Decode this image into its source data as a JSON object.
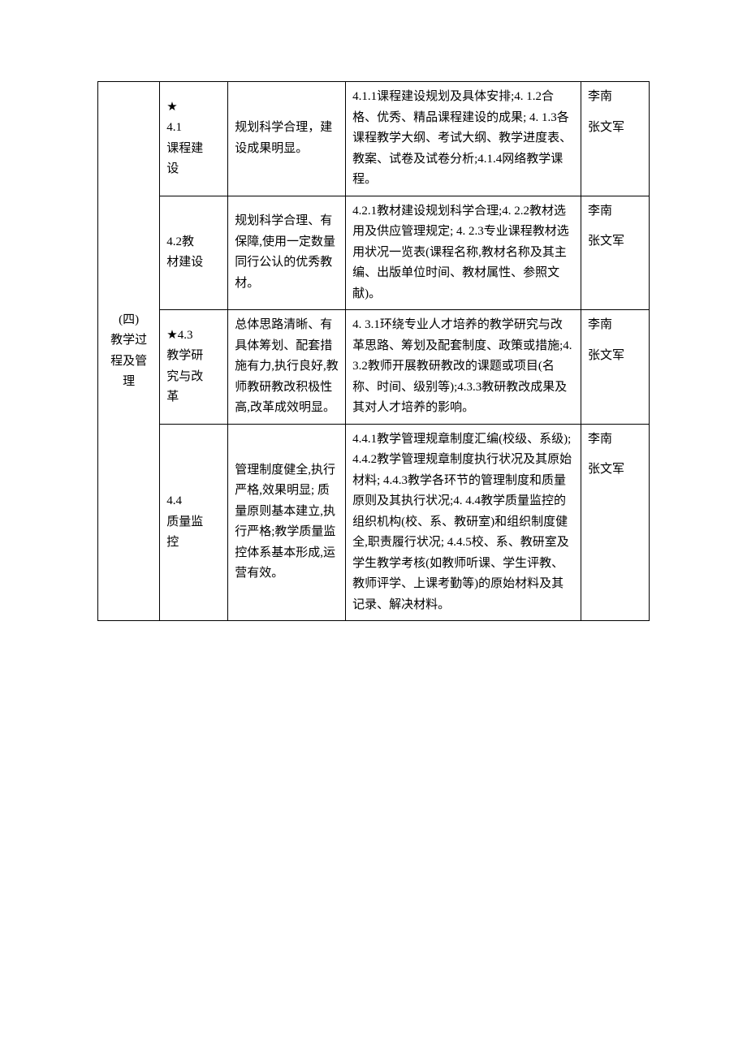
{
  "table": {
    "category": "(四)\n教学过\n程及管\n理",
    "rows": [
      {
        "col2": "★\n4.1\n课程建\n设",
        "col3": "规划科学合理，建设成果明显。",
        "col4": "4.1.1课程建设规划及具体安排;4. 1.2合格、优秀、精品课程建设的成果; 4. 1.3各课程教学大纲、考试大纲、教学进度表、教案、试卷及试卷分析;4.1.4网络教学课程。",
        "col5a": "李南",
        "col5b": "张文军"
      },
      {
        "col2": "4.2教\n材建设",
        "col3": "规划科学合理、有保障,使用一定数量同行公认的优秀教材。",
        "col4": "4.2.1教材建设规划科学合理;4. 2.2教材选用及供应管理规定; 4. 2.3专业课程教材选用状况一览表(课程名称,教材名称及其主编、出版单位时间、教材属性、参照文献)。",
        "col5a": "李南",
        "col5b": "张文军"
      },
      {
        "col2": "★4.3\n教学研\n究与改\n革",
        "col3": "总体思路清晰、有具体筹划、配套措施有力,执行良好,教师教研教改积极性高,改革成效明显。",
        "col4": "4. 3.1环绕专业人才培养的教学研究与改革思路、筹划及配套制度、政策或措施;4.3.2教师开展教研教改的课题或项目(名称、时间、级别等);4.3.3教研教改成果及其对人才培养的影响。",
        "col5a": "李南",
        "col5b": "张文军"
      },
      {
        "col2": "4.4\n质量监\n控",
        "col3": "管理制度健全,执行严格,效果明显; 质量原则基本建立,执行严格;教学质量监控体系基本形成,运营有效。",
        "col4": "4.4.1教学管理规章制度汇编(校级、系级);4.4.2教学管理规章制度执行状况及其原始材料; 4.4.3教学各环节的管理制度和质量原则及其执行状况;4. 4.4教学质量监控的组织机构(校、系、教研室)和组织制度健全,职责履行状况; 4.4.5校、系、教研室及学生教学考核(如教师听课、学生评教、教师评学、上课考勤等)的原始材料及其记录、解决材料。",
        "col5a": "李南",
        "col5b": "张文军"
      }
    ]
  }
}
